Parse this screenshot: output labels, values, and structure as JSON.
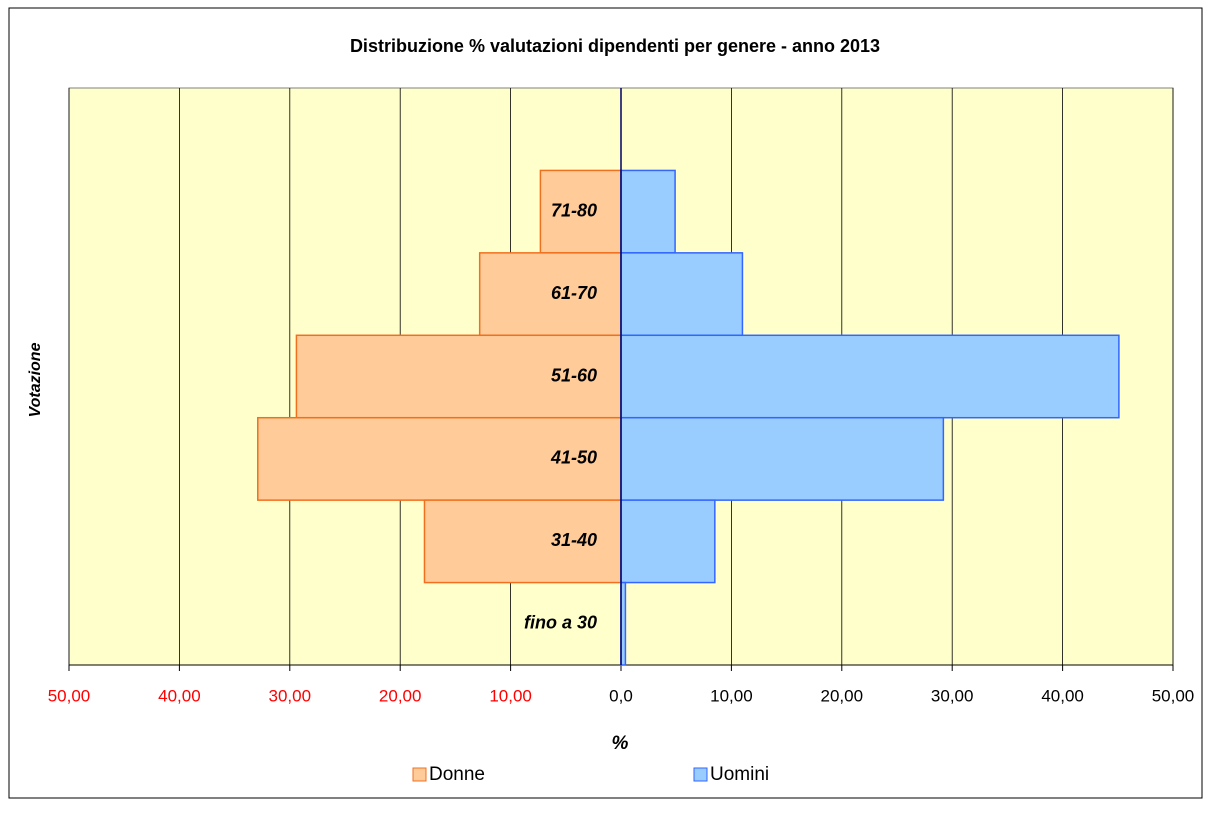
{
  "chart_data": {
    "type": "bar",
    "orientation": "horizontal",
    "title": "Distribuzione % valutazioni dipendenti per genere - anno 2013",
    "xlabel": "%",
    "ylabel": "Votazione",
    "categories": [
      null,
      "71-80",
      "61-70",
      "51-60",
      "41-50",
      "31-40",
      "fino a 30"
    ],
    "series": [
      {
        "name": "Donne",
        "color": "#ffcc99",
        "edge_color": "#f07020",
        "values": [
          null,
          -7.3,
          -12.8,
          -29.4,
          -32.9,
          -17.8,
          0
        ]
      },
      {
        "name": "Uomini",
        "color": "#99ccff",
        "edge_color": "#3366ff",
        "values": [
          null,
          4.9,
          11.0,
          45.1,
          29.2,
          8.5,
          0.4
        ]
      }
    ],
    "xlim": [
      -50,
      50
    ],
    "xticks": [
      {
        "value": -50,
        "label": "50,00"
      },
      {
        "value": -40,
        "label": "40,00"
      },
      {
        "value": -30,
        "label": "30,00"
      },
      {
        "value": -20,
        "label": "20,00"
      },
      {
        "value": -10,
        "label": "10,00"
      },
      {
        "value": 0,
        "label": "0,0"
      },
      {
        "value": 10,
        "label": "10,00"
      },
      {
        "value": 20,
        "label": "20,00"
      },
      {
        "value": 30,
        "label": "30,00"
      },
      {
        "value": 40,
        "label": "40,00"
      },
      {
        "value": 50,
        "label": "50,00"
      }
    ],
    "negative_tick_color": "#ff0000",
    "plot_background": "#ffffcc",
    "grid": true,
    "legend": "bottom"
  }
}
